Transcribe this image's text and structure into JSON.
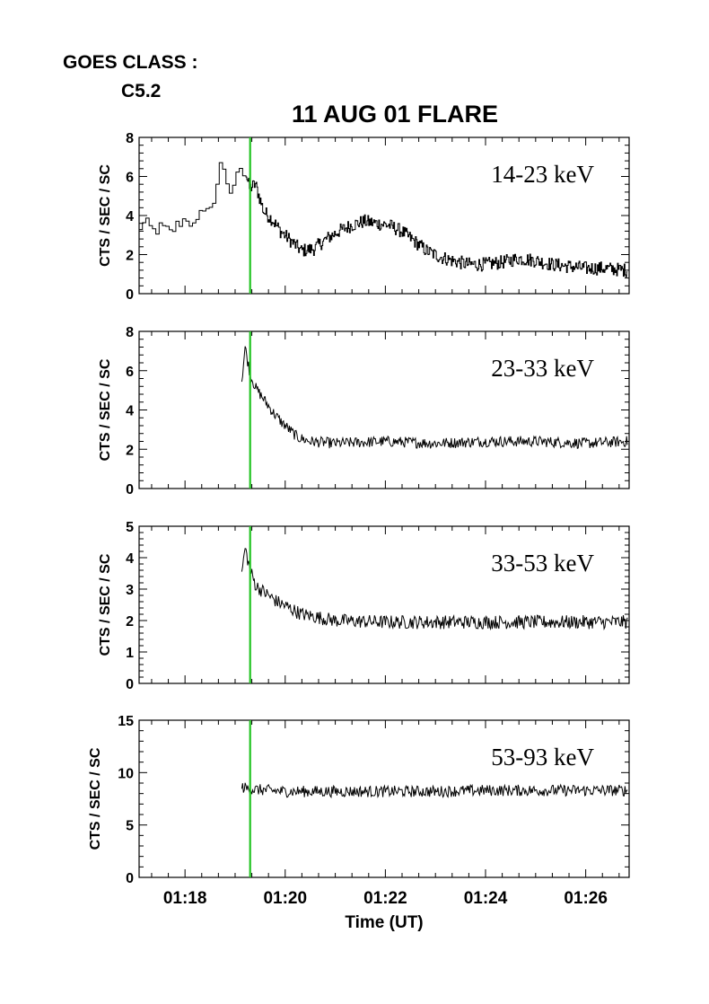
{
  "header": {
    "goes_label": "GOES CLASS :",
    "goes_class": "C5.2",
    "title": "11 AUG 01 FLARE"
  },
  "colors": {
    "trace": "#000000",
    "marker": "#22c322",
    "axes": "#000000"
  },
  "chart_data": [
    {
      "type": "line",
      "series_label": "14-23 keV",
      "ylabel": "CTS / SEC / SC",
      "ylim": [
        0,
        8
      ],
      "yticks": [
        0,
        2,
        4,
        6,
        8
      ],
      "x_start": "01:17:05",
      "x_end": "01:26:52",
      "marker_time": "01:19:18",
      "start": "01:17:05",
      "points": [
        [
          "01:17:05",
          3.3
        ],
        [
          "01:17:15",
          3.6
        ],
        [
          "01:17:25",
          3.2
        ],
        [
          "01:17:35",
          3.4
        ],
        [
          "01:17:45",
          3.1
        ],
        [
          "01:17:55",
          3.6
        ],
        [
          "01:18:05",
          3.9
        ],
        [
          "01:18:15",
          3.3
        ],
        [
          "01:18:25",
          4.5
        ],
        [
          "01:18:35",
          4.2
        ],
        [
          "01:18:45",
          6.8
        ],
        [
          "01:18:55",
          5.0
        ],
        [
          "01:19:05",
          6.0
        ],
        [
          "01:19:10",
          6.8
        ],
        [
          "01:19:18",
          5.4
        ],
        [
          "01:19:25",
          5.6
        ],
        [
          "01:19:35",
          4.2
        ],
        [
          "01:19:45",
          3.8
        ],
        [
          "01:19:55",
          3.2
        ],
        [
          "01:20:05",
          2.8
        ],
        [
          "01:20:20",
          2.2
        ],
        [
          "01:20:35",
          2.3
        ],
        [
          "01:20:50",
          2.8
        ],
        [
          "01:21:05",
          3.2
        ],
        [
          "01:21:20",
          3.5
        ],
        [
          "01:21:35",
          3.7
        ],
        [
          "01:21:50",
          3.6
        ],
        [
          "01:22:05",
          3.5
        ],
        [
          "01:22:20",
          3.2
        ],
        [
          "01:22:35",
          2.7
        ],
        [
          "01:22:50",
          2.2
        ],
        [
          "01:23:05",
          1.9
        ],
        [
          "01:23:20",
          1.7
        ],
        [
          "01:23:40",
          1.5
        ],
        [
          "01:24:00",
          1.5
        ],
        [
          "01:24:20",
          1.6
        ],
        [
          "01:24:40",
          1.8
        ],
        [
          "01:25:00",
          1.7
        ],
        [
          "01:25:20",
          1.5
        ],
        [
          "01:25:40",
          1.4
        ],
        [
          "01:26:00",
          1.3
        ],
        [
          "01:26:20",
          1.3
        ],
        [
          "01:26:50",
          1.2
        ]
      ]
    },
    {
      "type": "line",
      "series_label": "23-33 keV",
      "ylabel": "CTS / SEC / SC",
      "ylim": [
        0,
        8
      ],
      "yticks": [
        0,
        2,
        4,
        6,
        8
      ],
      "x_start": "01:17:05",
      "x_end": "01:26:52",
      "marker_time": "01:19:18",
      "start": "01:19:08",
      "points": [
        [
          "01:19:08",
          5.5
        ],
        [
          "01:19:12",
          7.2
        ],
        [
          "01:19:18",
          5.8
        ],
        [
          "01:19:25",
          5.1
        ],
        [
          "01:19:35",
          4.5
        ],
        [
          "01:19:45",
          3.9
        ],
        [
          "01:19:55",
          3.4
        ],
        [
          "01:20:05",
          3.0
        ],
        [
          "01:20:15",
          2.6
        ],
        [
          "01:20:30",
          2.4
        ],
        [
          "01:21:00",
          2.3
        ],
        [
          "01:22:00",
          2.4
        ],
        [
          "01:23:00",
          2.3
        ],
        [
          "01:24:00",
          2.4
        ],
        [
          "01:25:00",
          2.4
        ],
        [
          "01:26:00",
          2.3
        ],
        [
          "01:26:50",
          2.4
        ]
      ]
    },
    {
      "type": "line",
      "series_label": "33-53 keV",
      "ylabel": "CTS / SEC / SC",
      "ylim": [
        0,
        5
      ],
      "yticks": [
        0,
        1,
        2,
        3,
        4,
        5
      ],
      "x_start": "01:17:05",
      "x_end": "01:26:52",
      "marker_time": "01:19:18",
      "start": "01:19:08",
      "points": [
        [
          "01:19:08",
          3.5
        ],
        [
          "01:19:12",
          4.3
        ],
        [
          "01:19:18",
          3.6
        ],
        [
          "01:19:25",
          3.1
        ],
        [
          "01:19:35",
          2.9
        ],
        [
          "01:19:50",
          2.6
        ],
        [
          "01:20:05",
          2.4
        ],
        [
          "01:20:20",
          2.2
        ],
        [
          "01:20:40",
          2.1
        ],
        [
          "01:21:00",
          2.0
        ],
        [
          "01:22:00",
          1.95
        ],
        [
          "01:23:00",
          1.95
        ],
        [
          "01:24:00",
          1.95
        ],
        [
          "01:25:00",
          1.95
        ],
        [
          "01:26:00",
          1.95
        ],
        [
          "01:26:50",
          1.95
        ]
      ]
    },
    {
      "type": "line",
      "series_label": "53-93 keV",
      "ylabel": "CTS / SEC / SC",
      "ylim": [
        0,
        15
      ],
      "yticks": [
        0,
        5,
        10,
        15
      ],
      "x_start": "01:17:05",
      "x_end": "01:26:52",
      "marker_time": "01:19:18",
      "start": "01:19:08",
      "points": [
        [
          "01:19:08",
          8.6
        ],
        [
          "01:19:20",
          8.4
        ],
        [
          "01:20:00",
          8.2
        ],
        [
          "01:21:00",
          8.2
        ],
        [
          "01:22:00",
          8.2
        ],
        [
          "01:23:00",
          8.2
        ],
        [
          "01:24:00",
          8.3
        ],
        [
          "01:25:00",
          8.3
        ],
        [
          "01:26:00",
          8.3
        ],
        [
          "01:26:50",
          8.3
        ]
      ]
    }
  ],
  "x_axis": {
    "title": "Time (UT)",
    "tick_labels": [
      "01:18",
      "01:20",
      "01:22",
      "01:24",
      "01:26"
    ]
  }
}
